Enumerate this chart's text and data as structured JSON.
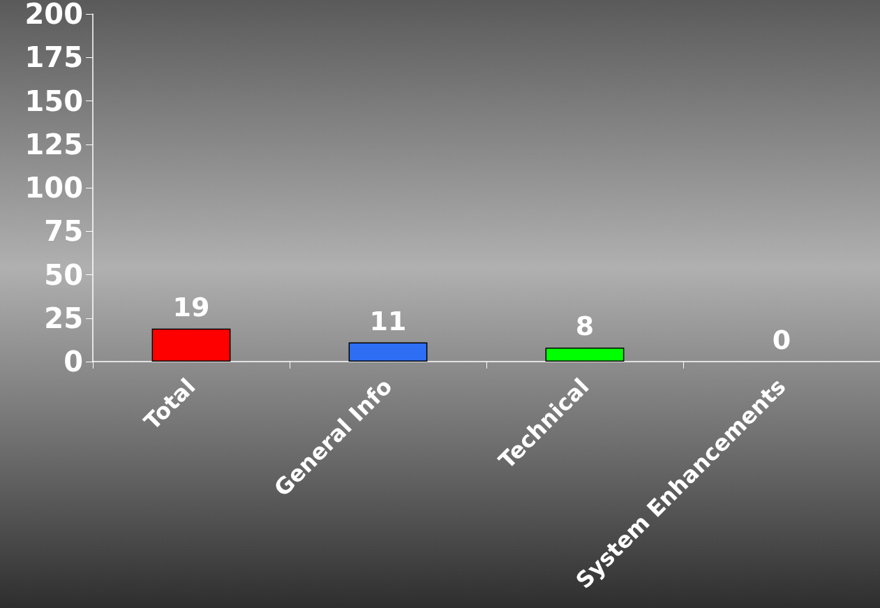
{
  "chart_data": {
    "type": "bar",
    "categories": [
      "Total",
      "General Info",
      "Technical",
      "System Enhancements"
    ],
    "values": [
      19,
      11,
      8,
      0
    ],
    "colors": [
      "#ff0000",
      "#2e6ef5",
      "#00ff00",
      null
    ],
    "ylim": [
      0,
      200
    ],
    "yticks": [
      0,
      25,
      50,
      75,
      100,
      125,
      150,
      175,
      200
    ],
    "data_labels": true,
    "grid": false
  }
}
